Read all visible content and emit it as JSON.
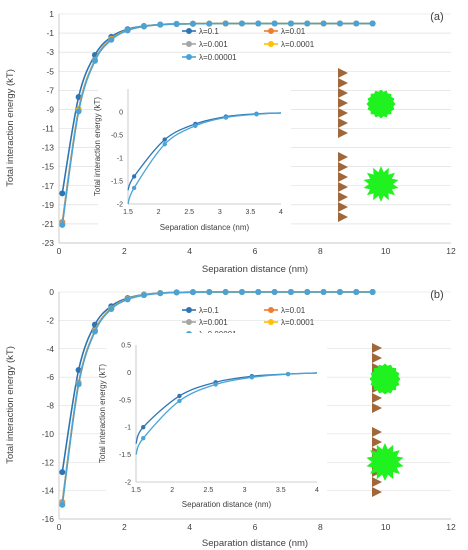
{
  "colors": {
    "s1": "#2e75b6",
    "s2": "#ed7d31",
    "s3": "#a5a5a5",
    "s4": "#ffc000",
    "s5": "#4aa3d8",
    "inset_near": "#2e75b6",
    "inset_far": "#4aa3d8",
    "surface": "#a0673a",
    "particle": "#1ff21f"
  },
  "chart_data": [
    {
      "type": "line",
      "panel_label": "(a)",
      "xlabel": "Separation distance (nm)",
      "ylabel": "Total interaction energy (kT)",
      "xlim": [
        0,
        12
      ],
      "ylim": [
        -23,
        1
      ],
      "x_ticks": [
        0,
        2,
        4,
        6,
        8,
        10,
        12
      ],
      "y_ticks": [
        1,
        -1,
        -3,
        -5,
        -7,
        -9,
        -11,
        -13,
        -15,
        -17,
        -19,
        -21,
        -23
      ],
      "grid": "horizontal",
      "legend_position": "top-right",
      "x": [
        0.1,
        0.6,
        1.1,
        1.6,
        2.1,
        2.6,
        3.1,
        3.6,
        4.1,
        4.6,
        5.1,
        5.6,
        6.1,
        6.6,
        7.1,
        7.6,
        8.1,
        8.6,
        9.1,
        9.6
      ],
      "series": [
        {
          "name": "λ=0.1",
          "color_key": "s1",
          "values": [
            -17.8,
            -7.7,
            -3.3,
            -1.4,
            -0.6,
            -0.26,
            -0.1,
            -0.04,
            -0.02,
            -0.01,
            0,
            0,
            0,
            0,
            0,
            0,
            0,
            0,
            0,
            0
          ]
        },
        {
          "name": "λ=0.01",
          "color_key": "s2",
          "values": [
            -20.8,
            -9.0,
            -3.8,
            -1.6,
            -0.7,
            -0.3,
            -0.12,
            -0.05,
            -0.02,
            -0.01,
            0,
            0,
            0,
            0,
            0,
            0,
            0,
            0,
            0,
            0
          ]
        },
        {
          "name": "λ=0.001",
          "color_key": "s3",
          "values": [
            -21.0,
            -9.1,
            -3.85,
            -1.65,
            -0.7,
            -0.3,
            -0.12,
            -0.05,
            -0.02,
            -0.01,
            0,
            0,
            0,
            0,
            0,
            0,
            0,
            0,
            0,
            0
          ]
        },
        {
          "name": "λ=0.0001",
          "color_key": "s4",
          "values": [
            -21.1,
            -9.1,
            -3.9,
            -1.65,
            -0.7,
            -0.3,
            -0.12,
            -0.05,
            -0.02,
            -0.01,
            0,
            0,
            0,
            0,
            0,
            0,
            0,
            0,
            0,
            0
          ]
        },
        {
          "name": "λ=0.00001",
          "color_key": "s5",
          "values": [
            -21.1,
            -9.2,
            -3.9,
            -1.7,
            -0.72,
            -0.3,
            -0.12,
            -0.05,
            -0.02,
            -0.01,
            0,
            0,
            0,
            0,
            0,
            0,
            0,
            0,
            0,
            0
          ]
        }
      ],
      "inset": {
        "xlabel": "Separation distance (nm)",
        "ylabel": "Total interaction energy (kT)",
        "xlim": [
          1.5,
          4
        ],
        "ylim": [
          -2,
          0.5
        ],
        "x_ticks": [
          1.5,
          2,
          2.5,
          3,
          3.5,
          4
        ],
        "y_ticks": [
          0,
          -0.5,
          -1,
          -1.5,
          -2
        ],
        "near": {
          "color_key": "inset_near",
          "x": [
            1.5,
            1.6,
            2.1,
            2.6,
            3.1,
            3.6,
            4.0
          ],
          "values": [
            -1.7,
            -1.4,
            -0.6,
            -0.26,
            -0.1,
            -0.04,
            -0.02
          ],
          "markers": [
            1.6,
            2.1,
            2.6,
            3.1,
            3.6
          ]
        },
        "far": {
          "color_key": "inset_far",
          "x": [
            1.5,
            1.6,
            2.1,
            2.6,
            3.1,
            3.6,
            4.0
          ],
          "values": [
            -2.0,
            -1.65,
            -0.7,
            -0.3,
            -0.12,
            -0.05,
            -0.02
          ],
          "markers": [
            1.6,
            2.1,
            2.6,
            3.1,
            3.6
          ]
        }
      }
    },
    {
      "type": "line",
      "panel_label": "(b)",
      "xlabel": "Separation distance (nm)",
      "ylabel": "Total interaction energy (kT)",
      "xlim": [
        0,
        12
      ],
      "ylim": [
        -16,
        0
      ],
      "x_ticks": [
        0,
        2,
        4,
        6,
        8,
        10,
        12
      ],
      "y_ticks": [
        0,
        -2,
        -4,
        -6,
        -8,
        -10,
        -12,
        -14,
        -16
      ],
      "grid": "horizontal",
      "legend_position": "top-right",
      "x": [
        0.1,
        0.6,
        1.1,
        1.6,
        2.1,
        2.6,
        3.1,
        3.6,
        4.1,
        4.6,
        5.1,
        5.6,
        6.1,
        6.6,
        7.1,
        7.6,
        8.1,
        8.6,
        9.1,
        9.6
      ],
      "series": [
        {
          "name": "λ=0.1",
          "color_key": "s1",
          "values": [
            -12.7,
            -5.5,
            -2.3,
            -1.0,
            -0.43,
            -0.18,
            -0.07,
            -0.03,
            -0.01,
            0,
            0,
            0,
            0,
            0,
            0,
            0,
            0,
            0,
            0,
            0
          ]
        },
        {
          "name": "λ=0.01",
          "color_key": "s2",
          "values": [
            -14.8,
            -6.4,
            -2.7,
            -1.15,
            -0.5,
            -0.2,
            -0.08,
            -0.03,
            -0.01,
            0,
            0,
            0,
            0,
            0,
            0,
            0,
            0,
            0,
            0,
            0
          ]
        },
        {
          "name": "λ=0.001",
          "color_key": "s3",
          "values": [
            -14.9,
            -6.45,
            -2.75,
            -1.17,
            -0.5,
            -0.21,
            -0.08,
            -0.03,
            -0.01,
            0,
            0,
            0,
            0,
            0,
            0,
            0,
            0,
            0,
            0,
            0
          ]
        },
        {
          "name": "λ=0.0001",
          "color_key": "s4",
          "values": [
            -15.0,
            -6.5,
            -2.75,
            -1.18,
            -0.5,
            -0.21,
            -0.08,
            -0.03,
            -0.01,
            0,
            0,
            0,
            0,
            0,
            0,
            0,
            0,
            0,
            0,
            0
          ]
        },
        {
          "name": "λ=0.00001",
          "color_key": "s5",
          "values": [
            -15.0,
            -6.5,
            -2.78,
            -1.2,
            -0.52,
            -0.22,
            -0.09,
            -0.03,
            -0.01,
            0,
            0,
            0,
            0,
            0,
            0,
            0,
            0,
            0,
            0,
            0
          ]
        }
      ],
      "inset": {
        "xlabel": "Separation distance (nm)",
        "ylabel": "Total interaction energy (kT)",
        "xlim": [
          1.5,
          4
        ],
        "ylim": [
          -2,
          0.5
        ],
        "x_ticks": [
          1.5,
          2,
          2.5,
          3,
          3.5,
          4
        ],
        "y_ticks": [
          0.5,
          0,
          -0.5,
          -1,
          -1.5,
          -2
        ],
        "near": {
          "color_key": "inset_near",
          "x": [
            1.5,
            1.6,
            2.1,
            2.6,
            3.1,
            3.6,
            4.0
          ],
          "values": [
            -1.3,
            -1.0,
            -0.43,
            -0.18,
            -0.07,
            -0.03,
            -0.01
          ],
          "markers": [
            1.6,
            2.1,
            2.6,
            3.1,
            3.6
          ]
        },
        "far": {
          "color_key": "inset_far",
          "x": [
            1.5,
            1.6,
            2.1,
            2.6,
            3.1,
            3.6,
            4.0
          ],
          "values": [
            -1.5,
            -1.2,
            -0.52,
            -0.22,
            -0.09,
            -0.03,
            -0.01
          ],
          "markers": [
            1.6,
            2.1,
            2.6,
            3.1,
            3.6
          ]
        }
      }
    }
  ]
}
